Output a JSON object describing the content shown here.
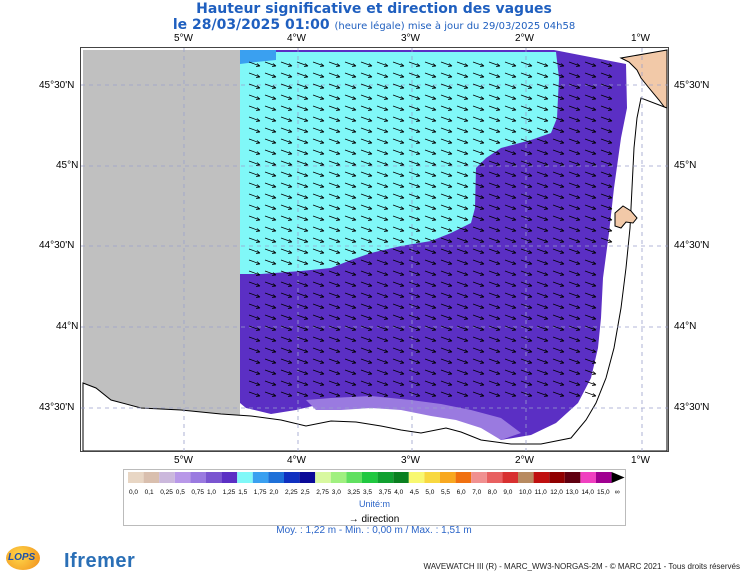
{
  "title": {
    "line1": "Hauteur significative et direction des vagues",
    "line2_main": "le 28/03/2025 01:00",
    "line2_small": "(heure légale) mise à jour du 29/03/2025 04h58"
  },
  "map": {
    "lon_labels": [
      "5°W",
      "4°W",
      "3°W",
      "2°W",
      "1°W"
    ],
    "lat_labels": [
      "45°30'N",
      "45°N",
      "44°30'N",
      "44°N",
      "43°30'N"
    ],
    "colors": {
      "no_data": "#c0c0c0",
      "wave_1_25": "#5b2fc4",
      "wave_1_5": "#80f8f8",
      "wave_1_75": "#3aa0f0",
      "wave_1_0": "#9a7ae0",
      "land": "#f2c9a8",
      "arrow": "#000000",
      "grid": "#9aa0cc"
    }
  },
  "legend": {
    "labels": [
      "0,0",
      "0,1",
      "0,25",
      "0,5",
      "0,75",
      "1,0",
      "1,25",
      "1,5",
      "1,75",
      "2,0",
      "2,25",
      "2,5",
      "2,75",
      "3,0",
      "3,25",
      "3,5",
      "3,75",
      "4,0",
      "4,5",
      "5,0",
      "5,5",
      "6,0",
      "7,0",
      "8,0",
      "9,0",
      "10,0",
      "11,0",
      "12,0",
      "13,0",
      "14,0",
      "15,0"
    ],
    "colors": [
      "#e8d6c4",
      "#d9bfae",
      "#cbb8dc",
      "#b898e8",
      "#9a7ae0",
      "#7a55d0",
      "#5b2fc4",
      "#80f8f8",
      "#3aa0f0",
      "#1e70d8",
      "#1030c0",
      "#0a0a98",
      "#d8f8a0",
      "#a0f080",
      "#60e060",
      "#20c840",
      "#10a030",
      "#0a8020",
      "#f8f870",
      "#f8d840",
      "#f8a820",
      "#f07010",
      "#f09090",
      "#e86060",
      "#d83030",
      "#b88a60",
      "#c01010",
      "#900000",
      "#600010",
      "#f040c0",
      "#a00090"
    ],
    "unit": "Unité:m",
    "infinity": "∞"
  },
  "direction_label": "direction",
  "stats": "Moy. : 1,22 m   -   Min. : 0,00 m / Max. : 1,51 m",
  "footer": "WAVEWATCH III (R) - MARC_WW3-NORGAS-2M - © MARC 2021 - Tous droits réservés",
  "logo": {
    "ifremer": "Ifremer",
    "lops": "LOPS"
  }
}
